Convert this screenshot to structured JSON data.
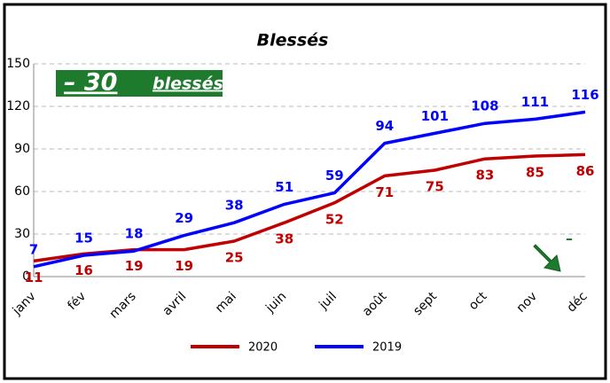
{
  "chart_data": {
    "type": "line",
    "title": "Blessés",
    "categories": [
      "janv",
      "fév",
      "mars",
      "avril",
      "mai",
      "juin",
      "juil",
      "août",
      "sept",
      "oct",
      "nov",
      "déc"
    ],
    "series": [
      {
        "name": "2020",
        "color": "#c00000",
        "values": [
          11,
          16,
          19,
          19,
          25,
          38,
          52,
          71,
          75,
          83,
          85,
          86
        ]
      },
      {
        "name": "2019",
        "color": "#0000ff",
        "values": [
          7,
          15,
          18,
          29,
          38,
          51,
          59,
          94,
          101,
          108,
          111,
          116
        ]
      }
    ],
    "ylim": [
      0,
      150
    ],
    "yticks": [
      0,
      30,
      60,
      90,
      120,
      150
    ],
    "grid": true,
    "annotations": [
      "– 30",
      "blessés",
      "–"
    ]
  }
}
